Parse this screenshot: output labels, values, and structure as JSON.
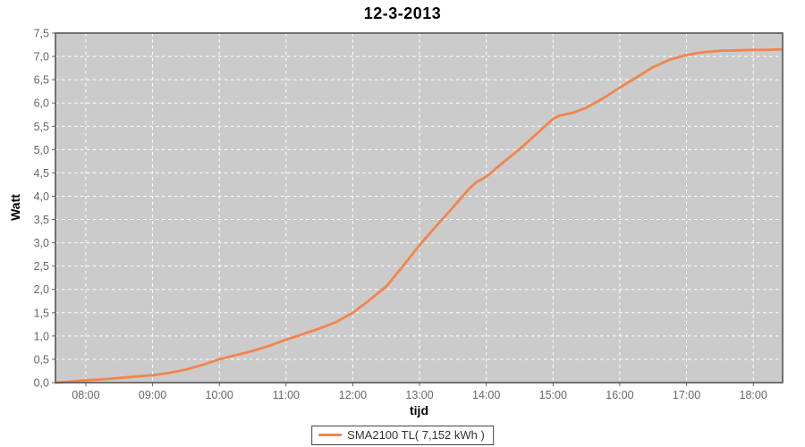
{
  "chart_data": {
    "type": "line",
    "title": "12-3-2013",
    "xlabel": "tijd",
    "ylabel": "Watt",
    "xlim": [
      7.545,
      18.44
    ],
    "ylim": [
      0,
      7.5
    ],
    "grid": "white-dashed",
    "legend_position": "bottom-center",
    "x_ticks": [
      {
        "v": 8,
        "label": "08:00"
      },
      {
        "v": 9,
        "label": "09:00"
      },
      {
        "v": 10,
        "label": "10:00"
      },
      {
        "v": 11,
        "label": "11:00"
      },
      {
        "v": 12,
        "label": "12:00"
      },
      {
        "v": 13,
        "label": "13:00"
      },
      {
        "v": 14,
        "label": "14:00"
      },
      {
        "v": 15,
        "label": "15:00"
      },
      {
        "v": 16,
        "label": "16:00"
      },
      {
        "v": 17,
        "label": "17:00"
      },
      {
        "v": 18,
        "label": "18:00"
      }
    ],
    "y_ticks": [
      {
        "v": 0.0,
        "label": "0,0"
      },
      {
        "v": 0.5,
        "label": "0,5"
      },
      {
        "v": 1.0,
        "label": "1,0"
      },
      {
        "v": 1.5,
        "label": "1,5"
      },
      {
        "v": 2.0,
        "label": "2,0"
      },
      {
        "v": 2.5,
        "label": "2,5"
      },
      {
        "v": 3.0,
        "label": "3,0"
      },
      {
        "v": 3.5,
        "label": "3,5"
      },
      {
        "v": 4.0,
        "label": "4,0"
      },
      {
        "v": 4.5,
        "label": "4,5"
      },
      {
        "v": 5.0,
        "label": "5,0"
      },
      {
        "v": 5.5,
        "label": "5,5"
      },
      {
        "v": 6.0,
        "label": "6,0"
      },
      {
        "v": 6.5,
        "label": "6,5"
      },
      {
        "v": 7.0,
        "label": "7,0"
      },
      {
        "v": 7.5,
        "label": "7,5"
      }
    ],
    "series": [
      {
        "name": "SMA2100 TL( 7,152 kWh )",
        "color": "#f4844c",
        "total_kwh_label": "7,152 kWh",
        "points": [
          [
            7.55,
            0.0
          ],
          [
            7.75,
            0.02
          ],
          [
            8.0,
            0.05
          ],
          [
            8.25,
            0.07
          ],
          [
            8.5,
            0.1
          ],
          [
            8.75,
            0.13
          ],
          [
            9.0,
            0.16
          ],
          [
            9.25,
            0.21
          ],
          [
            9.5,
            0.28
          ],
          [
            9.75,
            0.38
          ],
          [
            10.0,
            0.5
          ],
          [
            10.25,
            0.59
          ],
          [
            10.5,
            0.68
          ],
          [
            10.75,
            0.79
          ],
          [
            11.0,
            0.92
          ],
          [
            11.25,
            1.04
          ],
          [
            11.5,
            1.16
          ],
          [
            11.75,
            1.3
          ],
          [
            12.0,
            1.5
          ],
          [
            12.25,
            1.77
          ],
          [
            12.5,
            2.06
          ],
          [
            12.75,
            2.5
          ],
          [
            13.0,
            2.95
          ],
          [
            13.25,
            3.36
          ],
          [
            13.5,
            3.76
          ],
          [
            13.75,
            4.17
          ],
          [
            13.85,
            4.3
          ],
          [
            14.0,
            4.42
          ],
          [
            14.25,
            4.72
          ],
          [
            14.5,
            5.01
          ],
          [
            14.75,
            5.33
          ],
          [
            15.0,
            5.66
          ],
          [
            15.1,
            5.73
          ],
          [
            15.3,
            5.79
          ],
          [
            15.5,
            5.9
          ],
          [
            15.75,
            6.1
          ],
          [
            16.0,
            6.33
          ],
          [
            16.25,
            6.55
          ],
          [
            16.5,
            6.77
          ],
          [
            16.75,
            6.93
          ],
          [
            17.0,
            7.03
          ],
          [
            17.25,
            7.09
          ],
          [
            17.5,
            7.12
          ],
          [
            17.75,
            7.13
          ],
          [
            18.0,
            7.14
          ],
          [
            18.2,
            7.14
          ],
          [
            18.42,
            7.15
          ]
        ]
      }
    ],
    "colors": {
      "plot_bg": "#cbcbcb",
      "grid": "#ffffff",
      "border": "#4d4d4d",
      "tick_mark": "#666666",
      "tick_text": "#666666",
      "title_text": "#000000",
      "page_bg": "#ffffff"
    }
  }
}
